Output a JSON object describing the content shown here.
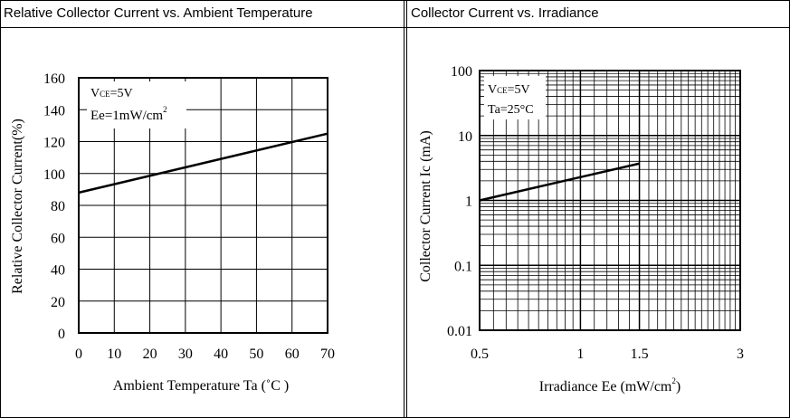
{
  "panels": {
    "left_title": "Relative Collector Current vs. Ambient Temperature",
    "right_title": "Collector Current vs. Irradiance"
  },
  "chart_data": [
    {
      "type": "line",
      "title": "Relative Collector Current vs. Ambient Temperature",
      "xlabel": "Ambient Temperature Ta (˚C )",
      "ylabel": "Relative Collector Current(%)",
      "xlim": [
        0,
        70
      ],
      "ylim": [
        0,
        160
      ],
      "xticks": [
        0,
        10,
        20,
        30,
        40,
        50,
        60,
        70
      ],
      "yticks": [
        0,
        20,
        40,
        60,
        80,
        100,
        120,
        140,
        160
      ],
      "grid": true,
      "annotations": [
        "VCE=5V",
        "Ee=1mW/cm²"
      ],
      "series": [
        {
          "name": "Ic",
          "x": [
            0,
            70
          ],
          "y": [
            88,
            125
          ]
        }
      ]
    },
    {
      "type": "line",
      "title": "Collector Current vs. Irradiance",
      "xlabel": "Irradiance Ee (mW/cm²)",
      "ylabel": "Collector Current Ic (mA)",
      "xscale": "log",
      "yscale": "log",
      "xlim": [
        0.5,
        3
      ],
      "ylim": [
        0.01,
        100
      ],
      "xticks": [
        0.5,
        1,
        1.5,
        3
      ],
      "xtick_labels": [
        "0.5",
        "1",
        "1.5",
        "3"
      ],
      "yticks": [
        0.01,
        0.1,
        1,
        10,
        100
      ],
      "ytick_labels": [
        "0.01",
        "0.1",
        "1",
        "10",
        "100"
      ],
      "grid": true,
      "annotations": [
        "VCE=5V",
        "Ta=25°C"
      ],
      "series": [
        {
          "name": "Ic",
          "x": [
            0.5,
            1.5
          ],
          "y": [
            1.0,
            3.7
          ]
        }
      ]
    }
  ]
}
